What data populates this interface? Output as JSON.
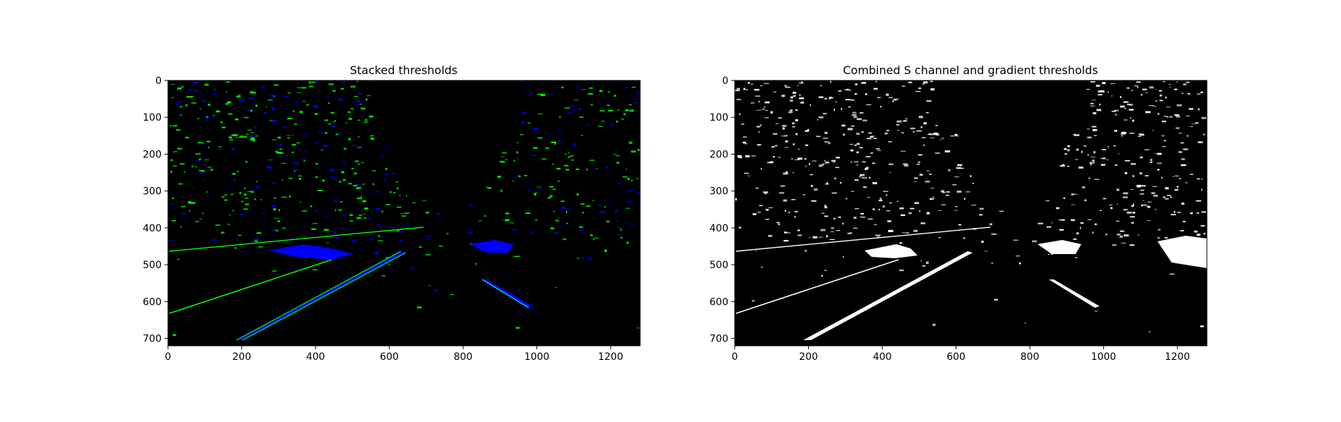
{
  "figure": {
    "background": "#ffffff"
  },
  "chart_data": [
    {
      "type": "heatmap",
      "title": "Stacked thresholds",
      "xlabel": "",
      "ylabel": "",
      "xlim": [
        0,
        1280
      ],
      "ylim": [
        720,
        0
      ],
      "xticks": [
        0,
        200,
        400,
        600,
        800,
        1000,
        1200
      ],
      "yticks": [
        0,
        100,
        200,
        300,
        400,
        500,
        600,
        700
      ],
      "colors": {
        "background": "#000000",
        "channel_1": "#00ff00",
        "channel_2": "#0000ff",
        "overlap": "#00ffff"
      }
    },
    {
      "type": "heatmap",
      "title": "Combined S channel and gradient thresholds",
      "xlabel": "",
      "ylabel": "",
      "xlim": [
        0,
        1280
      ],
      "ylim": [
        720,
        0
      ],
      "xticks": [
        0,
        200,
        400,
        600,
        800,
        1000,
        1200
      ],
      "yticks": [
        0,
        100,
        200,
        300,
        400,
        500,
        600,
        700
      ],
      "colors": {
        "background": "#000000",
        "on": "#ffffff"
      }
    }
  ]
}
